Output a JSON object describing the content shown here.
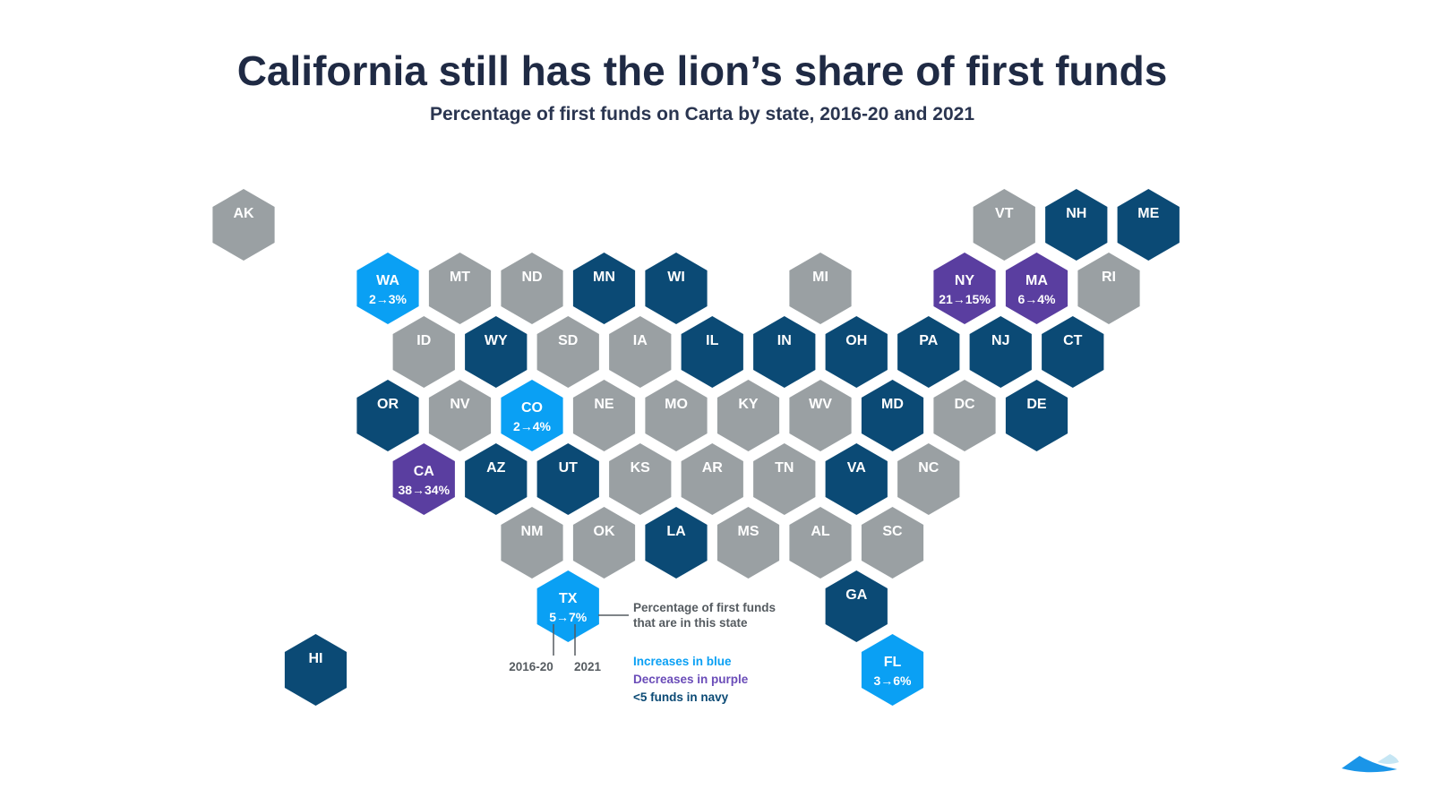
{
  "title": "California still has the lion’s share of first funds",
  "subtitle": "Percentage of first funds on Carta by state, 2016-20 and 2021",
  "colors": {
    "gray": "#9aa0a3",
    "navy": "#0b4a75",
    "blue": "#0aa0f4",
    "purple": "#5a3ea0",
    "text": "#1f2a44",
    "annotation": "#555b60"
  },
  "chart_data": {
    "type": "hex tile map",
    "legend": {
      "callout": [
        "Percentage of first funds",
        "that are in this state"
      ],
      "period_labels": [
        "2016-20",
        "2021"
      ],
      "increase": "Increases in blue",
      "decrease": "Decreases in purple",
      "few": "<5 funds in navy"
    },
    "states": [
      {
        "id": "AK",
        "col": 0,
        "row": 0,
        "cat": "gray"
      },
      {
        "id": "VT",
        "col": 10.55,
        "row": 0,
        "cat": "gray"
      },
      {
        "id": "NH",
        "col": 11.55,
        "row": 0,
        "cat": "navy"
      },
      {
        "id": "ME",
        "col": 12.55,
        "row": 0,
        "cat": "navy"
      },
      {
        "id": "WA",
        "col": 2,
        "row": 1,
        "cat": "blue",
        "pct": "2→3%"
      },
      {
        "id": "MT",
        "col": 3,
        "row": 1,
        "cat": "gray"
      },
      {
        "id": "ND",
        "col": 4,
        "row": 1,
        "cat": "gray"
      },
      {
        "id": "MN",
        "col": 5,
        "row": 1,
        "cat": "navy"
      },
      {
        "id": "WI",
        "col": 6,
        "row": 1,
        "cat": "navy"
      },
      {
        "id": "MI",
        "col": 8,
        "row": 1,
        "cat": "gray"
      },
      {
        "id": "NY",
        "col": 10,
        "row": 1,
        "cat": "purple",
        "pct": "21→15%"
      },
      {
        "id": "MA",
        "col": 11,
        "row": 1,
        "cat": "purple",
        "pct": "6→4%"
      },
      {
        "id": "RI",
        "col": 12,
        "row": 1,
        "cat": "gray"
      },
      {
        "id": "ID",
        "col": 2.5,
        "row": 2,
        "cat": "gray"
      },
      {
        "id": "WY",
        "col": 3.5,
        "row": 2,
        "cat": "navy"
      },
      {
        "id": "SD",
        "col": 4.5,
        "row": 2,
        "cat": "gray"
      },
      {
        "id": "IA",
        "col": 5.5,
        "row": 2,
        "cat": "gray"
      },
      {
        "id": "IL",
        "col": 6.5,
        "row": 2,
        "cat": "navy"
      },
      {
        "id": "IN",
        "col": 7.5,
        "row": 2,
        "cat": "navy"
      },
      {
        "id": "OH",
        "col": 8.5,
        "row": 2,
        "cat": "navy"
      },
      {
        "id": "PA",
        "col": 9.5,
        "row": 2,
        "cat": "navy"
      },
      {
        "id": "NJ",
        "col": 10.5,
        "row": 2,
        "cat": "navy"
      },
      {
        "id": "CT",
        "col": 11.5,
        "row": 2,
        "cat": "navy"
      },
      {
        "id": "OR",
        "col": 2,
        "row": 3,
        "cat": "navy"
      },
      {
        "id": "NV",
        "col": 3,
        "row": 3,
        "cat": "gray"
      },
      {
        "id": "CO",
        "col": 4,
        "row": 3,
        "cat": "blue",
        "pct": "2→4%"
      },
      {
        "id": "NE",
        "col": 5,
        "row": 3,
        "cat": "gray"
      },
      {
        "id": "MO",
        "col": 6,
        "row": 3,
        "cat": "gray"
      },
      {
        "id": "KY",
        "col": 7,
        "row": 3,
        "cat": "gray"
      },
      {
        "id": "WV",
        "col": 8,
        "row": 3,
        "cat": "gray"
      },
      {
        "id": "MD",
        "col": 9,
        "row": 3,
        "cat": "navy"
      },
      {
        "id": "DC",
        "col": 10,
        "row": 3,
        "cat": "gray"
      },
      {
        "id": "DE",
        "col": 11,
        "row": 3,
        "cat": "navy"
      },
      {
        "id": "CA",
        "col": 2.5,
        "row": 4,
        "cat": "purple",
        "pct": "38→34%"
      },
      {
        "id": "AZ",
        "col": 3.5,
        "row": 4,
        "cat": "navy"
      },
      {
        "id": "UT",
        "col": 4.5,
        "row": 4,
        "cat": "navy"
      },
      {
        "id": "KS",
        "col": 5.5,
        "row": 4,
        "cat": "gray"
      },
      {
        "id": "AR",
        "col": 6.5,
        "row": 4,
        "cat": "gray"
      },
      {
        "id": "TN",
        "col": 7.5,
        "row": 4,
        "cat": "gray"
      },
      {
        "id": "VA",
        "col": 8.5,
        "row": 4,
        "cat": "navy"
      },
      {
        "id": "NC",
        "col": 9.5,
        "row": 4,
        "cat": "gray"
      },
      {
        "id": "NM",
        "col": 4,
        "row": 5,
        "cat": "gray"
      },
      {
        "id": "OK",
        "col": 5,
        "row": 5,
        "cat": "gray"
      },
      {
        "id": "LA",
        "col": 6,
        "row": 5,
        "cat": "navy"
      },
      {
        "id": "MS",
        "col": 7,
        "row": 5,
        "cat": "gray"
      },
      {
        "id": "AL",
        "col": 8,
        "row": 5,
        "cat": "gray"
      },
      {
        "id": "SC",
        "col": 9,
        "row": 5,
        "cat": "gray"
      },
      {
        "id": "TX",
        "col": 4.5,
        "row": 6,
        "cat": "blue",
        "pct": "5→7%"
      },
      {
        "id": "GA",
        "col": 8.5,
        "row": 6,
        "cat": "navy"
      },
      {
        "id": "HI",
        "col": 1,
        "row": 7,
        "cat": "navy"
      },
      {
        "id": "FL",
        "col": 9,
        "row": 7,
        "cat": "blue",
        "pct": "3→6%"
      }
    ]
  }
}
